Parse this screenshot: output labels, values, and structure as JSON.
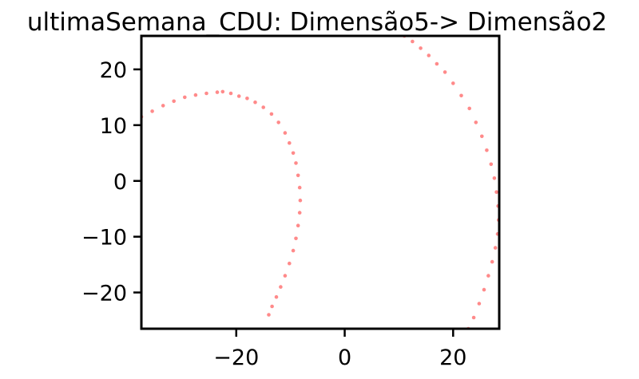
{
  "chart_data": {
    "type": "scatter",
    "title": "ultimaSemana_CDU: Dimensão5-> Dimensão2",
    "xlabel": "",
    "ylabel": "",
    "xlim": [
      -37.5,
      28.5
    ],
    "ylim": [
      -26.5,
      26
    ],
    "x_ticks": [
      {
        "value": -20,
        "label": "−20"
      },
      {
        "value": 0,
        "label": "0"
      },
      {
        "value": 20,
        "label": "20"
      }
    ],
    "y_ticks": [
      {
        "value": -20,
        "label": "−20"
      },
      {
        "value": -10,
        "label": "−10"
      },
      {
        "value": 0,
        "label": "0"
      },
      {
        "value": 10,
        "label": "10"
      },
      {
        "value": 20,
        "label": "20"
      }
    ],
    "grid": false,
    "point_color": "#ff2a2a",
    "series": [
      {
        "values": [
          [
            -37.5,
            11.5
          ],
          [
            -35.5,
            12.5
          ],
          [
            -33.5,
            13.5
          ],
          [
            -31.5,
            14.3
          ],
          [
            -29.5,
            15.0
          ],
          [
            -27.5,
            15.4
          ],
          [
            -25.5,
            15.7
          ],
          [
            -23.5,
            15.9
          ],
          [
            -22.5,
            16.0
          ],
          [
            -21.0,
            15.7
          ],
          [
            -19.5,
            15.2
          ],
          [
            -18.0,
            14.8
          ],
          [
            -16.5,
            14.1
          ],
          [
            -15.0,
            13.2
          ],
          [
            -13.5,
            12.0
          ],
          [
            -12.2,
            10.5
          ],
          [
            -11.0,
            8.6
          ],
          [
            -10.2,
            6.8
          ],
          [
            -9.5,
            5.0
          ],
          [
            -9.0,
            3.2
          ],
          [
            -8.6,
            1.0
          ],
          [
            -8.3,
            -1.2
          ],
          [
            -8.2,
            -3.5
          ],
          [
            -8.3,
            -5.7
          ],
          [
            -8.6,
            -8.0
          ],
          [
            -9.0,
            -10.3
          ],
          [
            -9.5,
            -12.5
          ],
          [
            -10.2,
            -14.8
          ],
          [
            -11.0,
            -17.0
          ],
          [
            -11.8,
            -19.0
          ],
          [
            -12.6,
            -20.8
          ],
          [
            -13.4,
            -22.5
          ],
          [
            -14.0,
            -24.0
          ]
        ]
      },
      {
        "values": [
          [
            11.0,
            26.0
          ],
          [
            12.5,
            25.0
          ],
          [
            14.0,
            23.8
          ],
          [
            15.5,
            22.5
          ],
          [
            17.0,
            21.0
          ],
          [
            18.5,
            19.5
          ],
          [
            20.0,
            17.5
          ],
          [
            21.5,
            15.3
          ],
          [
            23.0,
            13.0
          ],
          [
            24.2,
            10.5
          ],
          [
            25.3,
            8.0
          ],
          [
            26.2,
            5.5
          ],
          [
            27.0,
            3.0
          ],
          [
            27.6,
            0.5
          ],
          [
            28.0,
            -2.0
          ],
          [
            28.3,
            -4.5
          ],
          [
            28.4,
            -7.0
          ],
          [
            28.2,
            -9.5
          ],
          [
            27.8,
            -12.0
          ],
          [
            27.2,
            -14.5
          ],
          [
            26.5,
            -17.0
          ],
          [
            25.7,
            -19.5
          ],
          [
            24.8,
            -22.0
          ],
          [
            23.8,
            -24.5
          ],
          [
            22.8,
            -26.5
          ]
        ]
      }
    ]
  }
}
